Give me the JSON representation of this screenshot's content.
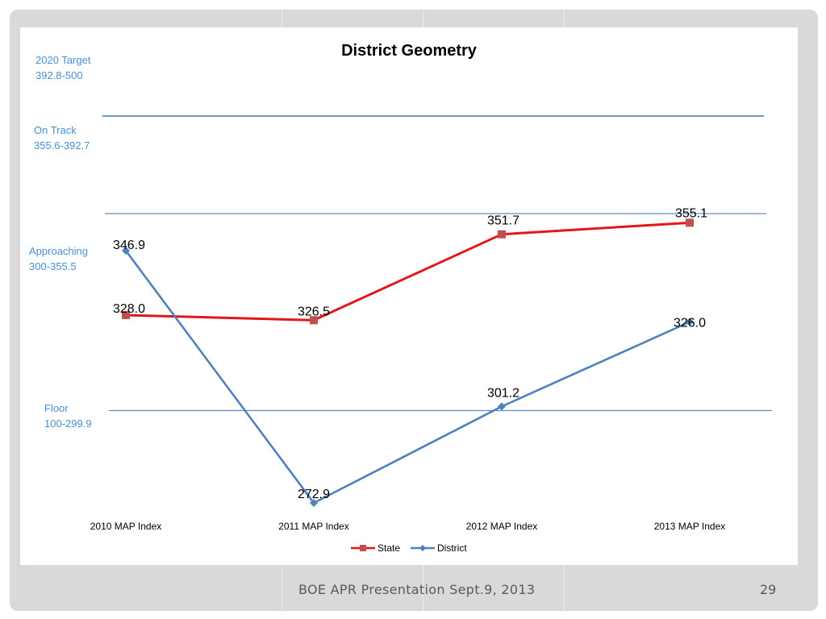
{
  "slide": {
    "footer": "BOE APR Presentation Sept.9, 2013",
    "page_number": "29"
  },
  "colors": {
    "state": "#e3161b",
    "state_marker": "#c0504d",
    "district": "#4f81bd",
    "band_line": "#3a77b0",
    "band_text": "#4a8fd0",
    "frame": "#d9d9d9"
  },
  "chart_data": {
    "type": "line",
    "title": "District Geometry",
    "categories": [
      "2010 MAP Index",
      "2011 MAP Index",
      "2012 MAP Index",
      "2013 MAP Index"
    ],
    "series": [
      {
        "name": "State",
        "values": [
          328.0,
          326.5,
          351.7,
          355.1
        ],
        "labels": [
          "328.0",
          "326.5",
          "351.7",
          "355.1"
        ],
        "marker": "square"
      },
      {
        "name": "District",
        "values": [
          346.9,
          272.9,
          301.2,
          326.0
        ],
        "labels": [
          "346.9",
          "272.9",
          "301.2",
          "326.0"
        ],
        "marker": "diamond"
      }
    ],
    "bands": [
      {
        "label": "2020 Target",
        "range": "392.8-500"
      },
      {
        "label": "On Track",
        "range": "355.6-392.7"
      },
      {
        "label": "Approaching",
        "range": "300-355.5"
      },
      {
        "label": "Floor",
        "range": "100-299.9"
      }
    ],
    "reference_lines": [
      392.8,
      355.6,
      300
    ],
    "ylim": [
      264,
      415
    ],
    "legend": "bottom",
    "grid": false
  }
}
